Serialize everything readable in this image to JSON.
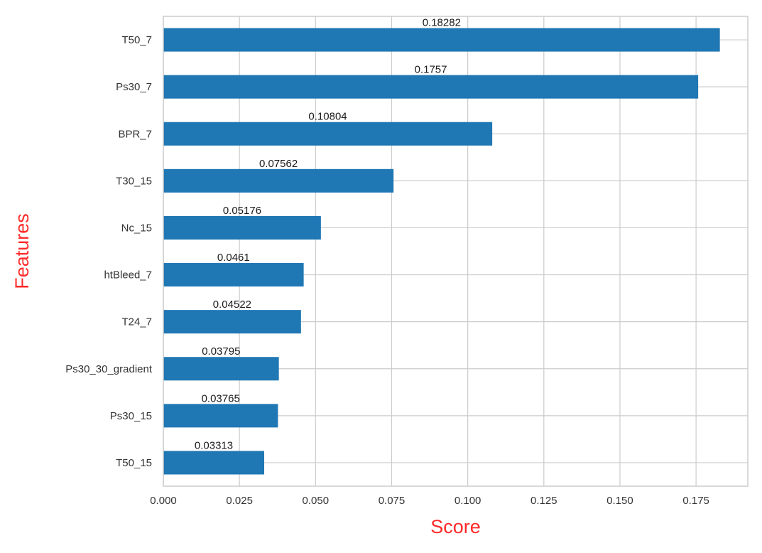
{
  "chart_data": {
    "type": "bar",
    "orientation": "horizontal",
    "xlabel": "Score",
    "ylabel": "Features",
    "xlim": [
      0,
      0.192
    ],
    "xticks": [
      0.0,
      0.025,
      0.05,
      0.075,
      0.1,
      0.125,
      0.15,
      0.175
    ],
    "xtick_labels": [
      "0.000",
      "0.025",
      "0.050",
      "0.075",
      "0.100",
      "0.125",
      "0.150",
      "0.175"
    ],
    "categories": [
      "T50_7",
      "Ps30_7",
      "BPR_7",
      "T30_15",
      "Nc_15",
      "htBleed_7",
      "T24_7",
      "Ps30_30_gradient",
      "Ps30_15",
      "T50_15"
    ],
    "values": [
      0.18282,
      0.1757,
      0.10804,
      0.07562,
      0.05176,
      0.0461,
      0.04522,
      0.03795,
      0.03765,
      0.03313
    ],
    "data_labels": [
      "0.18282",
      "0.1757",
      "0.10804",
      "0.07562",
      "0.05176",
      "0.0461",
      "0.04522",
      "0.03795",
      "0.03765",
      "0.03313"
    ],
    "grid": true,
    "legend": false,
    "colors": {
      "bar": "#1f77b4",
      "grid": "#cccccc",
      "axis_title": "#ff2a2a",
      "tick_text": "#333333",
      "data_label_text": "#1a1a1a",
      "frame": "#cccccc",
      "background": "#ffffff"
    }
  }
}
